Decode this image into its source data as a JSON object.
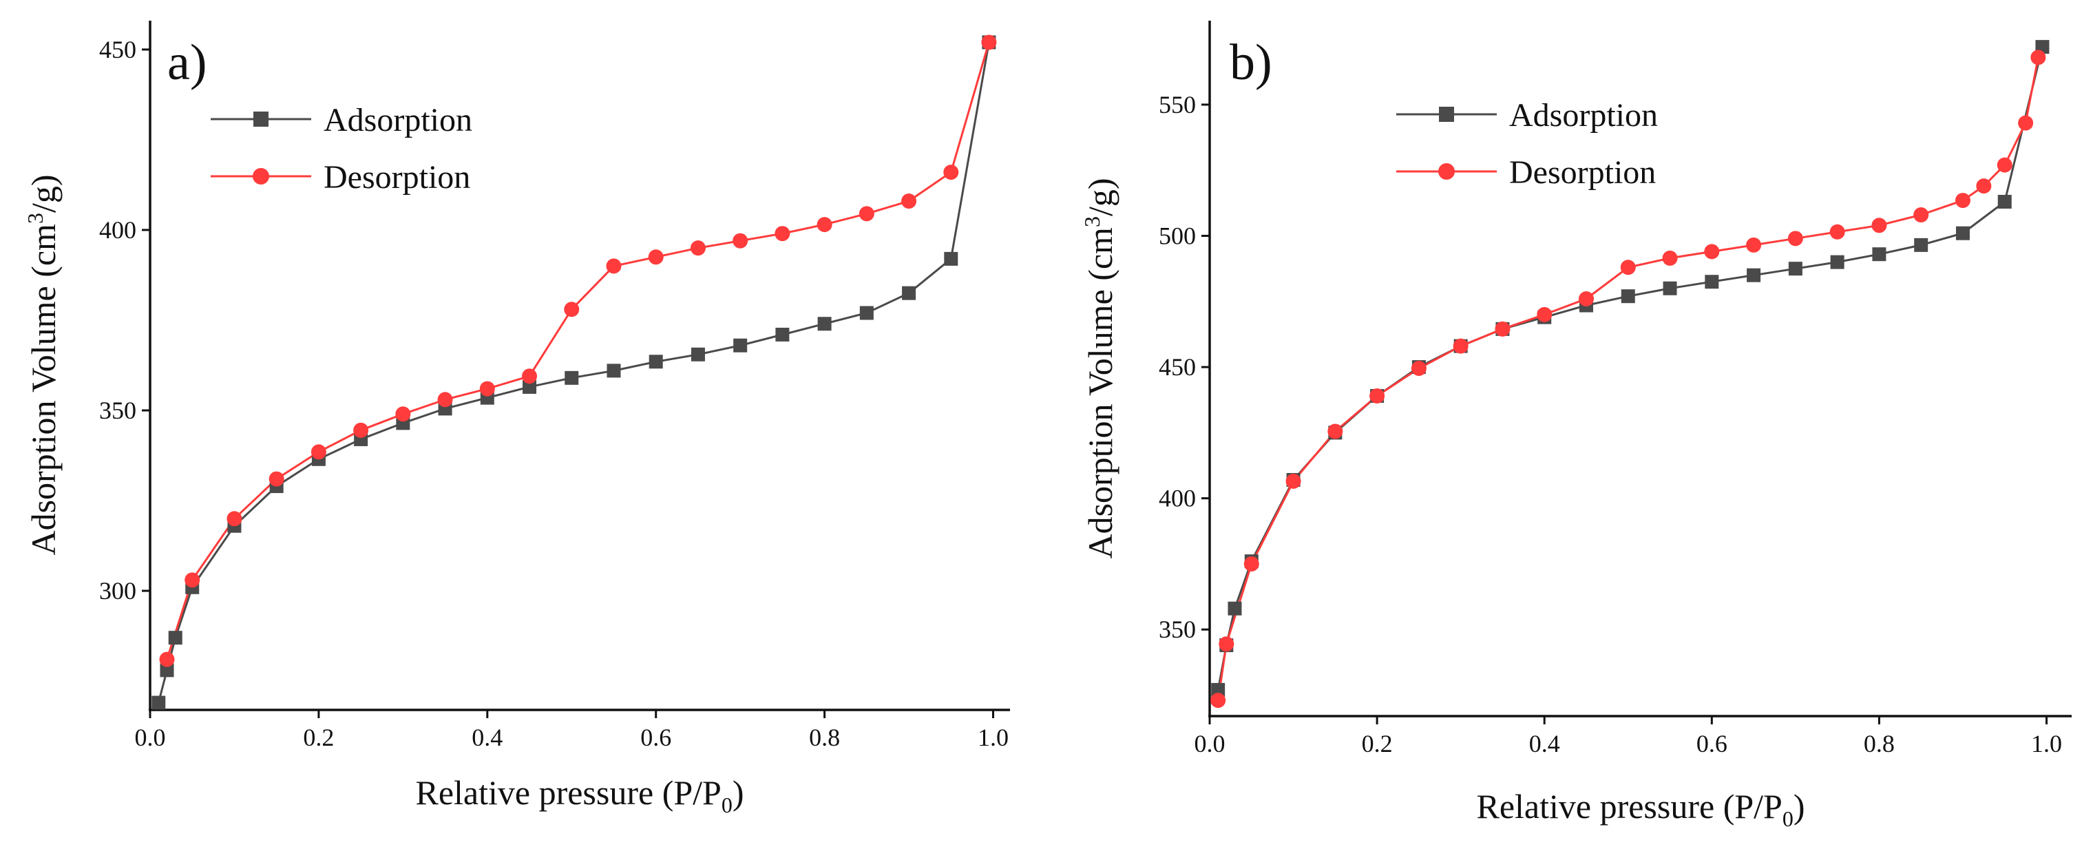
{
  "chart_data": [
    {
      "type": "line",
      "panel_label": "a)",
      "title": "",
      "xlabel": {
        "prefix": "Relative pressure (P/P",
        "subscript": "0",
        "suffix": ")"
      },
      "ylabel": {
        "prefix": "Adsorption Volume (cm",
        "superscript": "3",
        "suffix": "/g)"
      },
      "xlim": [
        0.0,
        1.02
      ],
      "ylim": [
        267,
        458
      ],
      "x_ticks": [
        0.0,
        0.2,
        0.4,
        0.6,
        0.8,
        1.0
      ],
      "x_tick_labels": [
        "0.0",
        "0.2",
        "0.4",
        "0.6",
        "0.8",
        "1.0"
      ],
      "y_ticks": [
        300,
        350,
        400,
        450
      ],
      "y_tick_labels": [
        "300",
        "350",
        "400",
        "450"
      ],
      "grid": false,
      "legend_position": "top-left",
      "series": [
        {
          "name": "Adsorption",
          "marker": "square",
          "color": "#4a4a4a",
          "x": [
            0.01,
            0.02,
            0.03,
            0.05,
            0.1,
            0.15,
            0.2,
            0.25,
            0.3,
            0.35,
            0.4,
            0.45,
            0.5,
            0.55,
            0.6,
            0.65,
            0.7,
            0.75,
            0.8,
            0.85,
            0.9,
            0.95,
            0.995
          ],
          "y": [
            269,
            278,
            287,
            301,
            318,
            329,
            336.5,
            342,
            346.5,
            350.5,
            353.5,
            356.5,
            359,
            361,
            363.5,
            365.5,
            368,
            371,
            374,
            377,
            382.5,
            392,
            452
          ]
        },
        {
          "name": "Desorption",
          "marker": "circle",
          "color": "#ff3b3b",
          "x": [
            0.995,
            0.95,
            0.9,
            0.85,
            0.8,
            0.75,
            0.7,
            0.65,
            0.6,
            0.55,
            0.5,
            0.45,
            0.4,
            0.35,
            0.3,
            0.25,
            0.2,
            0.15,
            0.1,
            0.05,
            0.02
          ],
          "y": [
            452,
            416,
            408,
            404.5,
            401.5,
            399,
            397,
            395,
            392.5,
            390,
            378,
            359.5,
            356,
            353,
            349,
            344.5,
            338.5,
            331,
            320,
            303,
            281
          ]
        }
      ]
    },
    {
      "type": "line",
      "panel_label": "b)",
      "title": "",
      "xlabel": {
        "prefix": "Relative pressure (P/P",
        "subscript": "0",
        "suffix": ")"
      },
      "ylabel": {
        "prefix": "Adsorption Volume (cm",
        "superscript": "3",
        "suffix": "/g)"
      },
      "xlim": [
        0.0,
        1.03
      ],
      "ylim": [
        317,
        582
      ],
      "x_ticks": [
        0.0,
        0.2,
        0.4,
        0.6,
        0.8,
        1.0
      ],
      "x_tick_labels": [
        "0.0",
        "0.2",
        "0.4",
        "0.6",
        "0.8",
        "1.0"
      ],
      "y_ticks": [
        350,
        400,
        450,
        500,
        550
      ],
      "y_tick_labels": [
        "350",
        "400",
        "450",
        "500",
        "550"
      ],
      "grid": false,
      "legend_position": "top-left",
      "series": [
        {
          "name": "Adsorption",
          "marker": "square",
          "color": "#4a4a4a",
          "x": [
            0.01,
            0.02,
            0.03,
            0.05,
            0.1,
            0.15,
            0.2,
            0.25,
            0.3,
            0.35,
            0.4,
            0.45,
            0.5,
            0.55,
            0.6,
            0.65,
            0.7,
            0.75,
            0.8,
            0.85,
            0.9,
            0.95,
            0.995
          ],
          "y": [
            327,
            344,
            358,
            376,
            407,
            425,
            439,
            450,
            458,
            464.5,
            469,
            473.5,
            477,
            480,
            482.5,
            485,
            487.5,
            490,
            493,
            496.5,
            501,
            513,
            572
          ]
        },
        {
          "name": "Desorption",
          "marker": "circle",
          "color": "#ff3b3b",
          "x": [
            0.99,
            0.975,
            0.95,
            0.925,
            0.9,
            0.85,
            0.8,
            0.75,
            0.7,
            0.65,
            0.6,
            0.55,
            0.5,
            0.45,
            0.4,
            0.35,
            0.3,
            0.25,
            0.2,
            0.15,
            0.1,
            0.05,
            0.02,
            0.01
          ],
          "y": [
            568,
            543,
            527,
            519,
            513.5,
            508,
            504,
            501.5,
            499,
            496.5,
            494,
            491.5,
            488,
            476,
            470,
            464.5,
            458,
            449.5,
            439,
            425.5,
            406.5,
            375,
            344.5,
            323
          ]
        }
      ]
    }
  ]
}
